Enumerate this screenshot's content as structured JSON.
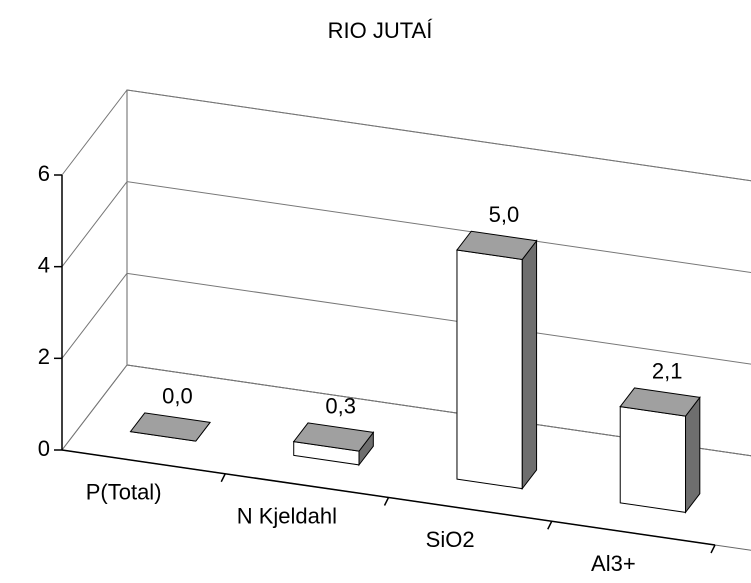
{
  "chart_data": {
    "type": "bar3d",
    "title": "RIO JUTAÍ",
    "categories": [
      "P(Total)",
      "N Kjeldahl",
      "SiO2",
      "Al3+"
    ],
    "values": [
      0.0,
      0.3,
      5.0,
      2.1
    ],
    "value_labels": [
      "0,0",
      "0,3",
      "5,0",
      "2,1"
    ],
    "ylim": [
      0,
      6
    ],
    "yticks": [
      0,
      2,
      4,
      6
    ],
    "grid": true,
    "colors": {
      "front": "#ffffff",
      "top": "#a0a0a0",
      "side": "#6e6e6e"
    }
  }
}
